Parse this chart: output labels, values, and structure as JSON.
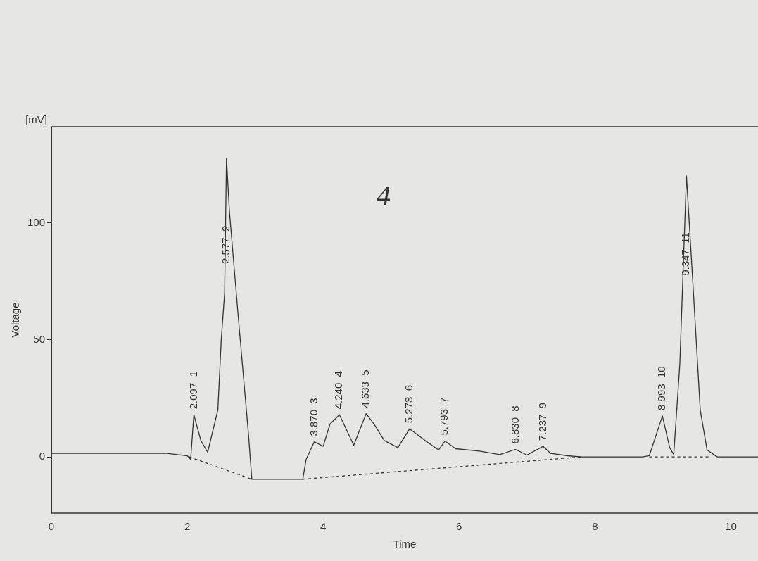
{
  "chart_data": {
    "type": "line",
    "xlabel": "Time",
    "ylabel": "Voltage",
    "xlim": [
      0,
      10.4
    ],
    "ylim": [
      -24,
      141
    ],
    "xticks": [
      0,
      2,
      4,
      6,
      8,
      10
    ],
    "yticks": [
      0,
      50,
      100
    ],
    "grid": false,
    "legend": false,
    "marker": "none",
    "series": [
      {
        "color": "#333333",
        "line_style": "solid",
        "x": [
          0,
          1.7,
          2.0,
          2.05,
          2.097,
          2.2,
          2.3,
          2.45,
          2.5,
          2.55,
          2.577,
          2.62,
          2.75,
          2.9,
          2.95,
          3.7,
          3.75,
          3.87,
          4.0,
          4.1,
          4.24,
          4.45,
          4.633,
          4.75,
          4.9,
          5.1,
          5.273,
          5.5,
          5.7,
          5.793,
          5.95,
          6.3,
          6.6,
          6.83,
          7.0,
          7.237,
          7.35,
          7.6,
          7.8,
          8.7,
          8.8,
          8.993,
          9.1,
          9.16,
          9.25,
          9.347,
          9.45,
          9.55,
          9.65,
          9.8,
          10.4
        ],
        "values": [
          1.5,
          1.5,
          0.5,
          -1,
          18,
          7,
          2,
          20,
          50,
          70,
          127.6,
          105,
          60,
          10,
          -9.5,
          -9.5,
          -1,
          6.5,
          4.5,
          14,
          18,
          5,
          18.5,
          14,
          7,
          4,
          12,
          7,
          3,
          6.8,
          3.5,
          2.5,
          1,
          3.2,
          0.8,
          4.5,
          1.5,
          0.5,
          0,
          0,
          0.5,
          17.5,
          4,
          1,
          40,
          120,
          70,
          20,
          3,
          0,
          0
        ]
      },
      {
        "color": "#333333",
        "line_style": "dashed",
        "x": [
          2.03,
          2.95,
          3.3,
          3.7,
          7.8,
          8.3,
          8.8,
          9.7
        ],
        "values": [
          0,
          -9.5,
          null,
          -9.5,
          0,
          null,
          0,
          0
        ]
      }
    ],
    "annotations": [
      "[mV]",
      "4",
      {
        "text": "2.097  1",
        "x": 2.097,
        "y": 18
      },
      {
        "text": "2.577  2",
        "x": 2.577,
        "y": 80
      },
      {
        "text": "3.870  3",
        "x": 3.87,
        "y": 6.5
      },
      {
        "text": "4.240  4",
        "x": 4.24,
        "y": 18
      },
      {
        "text": "4.633  5",
        "x": 4.633,
        "y": 18.5
      },
      {
        "text": "5.273  6",
        "x": 5.273,
        "y": 12
      },
      {
        "text": "5.793  7",
        "x": 5.793,
        "y": 6.8
      },
      {
        "text": "6.830  8",
        "x": 6.83,
        "y": 3.2
      },
      {
        "text": "7.237  9",
        "x": 7.237,
        "y": 4.5
      },
      {
        "text": "8.993  10",
        "x": 8.993,
        "y": 17.5
      },
      {
        "text": "9.347  11",
        "x": 9.347,
        "y": 75
      }
    ]
  }
}
